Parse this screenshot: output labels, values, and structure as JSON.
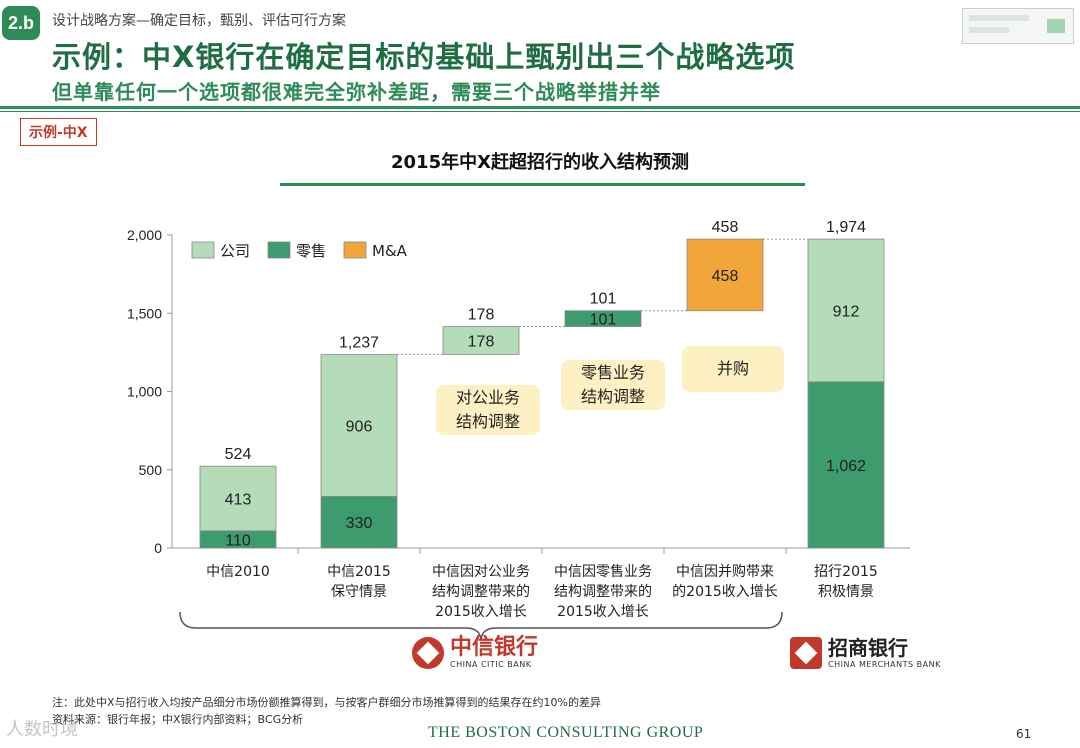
{
  "header": {
    "badge": "2.b",
    "breadcrumb": "设计战略方案—确定目标，甄别、评估可行方案",
    "title": "示例：中X银行在确定目标的基础上甄别出三个战略选项",
    "subtitle": "但单靠任何一个选项都很难完全弥补差距，需要三个战略举措并举"
  },
  "example_tag": "示例-中X",
  "callouts": {
    "corporate": [
      "对公业务",
      "结构调整"
    ],
    "retail": [
      "零售业务",
      "结构调整"
    ],
    "ma": [
      "并购"
    ]
  },
  "logos": {
    "citic_cn": "中信银行",
    "citic_en": "CHINA CITIC BANK",
    "cmb_cn": "招商银行",
    "cmb_en": "CHINA MERCHANTS BANK"
  },
  "footer": {
    "note": "注：此处中X与招行收入均按产品细分市场份额推算得到，与按客户群细分市场推算得到的结果存在约10%的差异",
    "source": "资料来源：银行年报；中X银行内部资料；BCG分析",
    "brand": "THE BOSTON CONSULTING GROUP",
    "page": "61",
    "watermark": "人数时境"
  },
  "chart_data": {
    "type": "bar",
    "subtype": "stacked-waterfall",
    "title": "2015年中X赶超招行的收入结构预测",
    "xlabel": "",
    "ylabel": "",
    "ylim": [
      0,
      2000
    ],
    "yticks": [
      "0",
      "500",
      "1,000",
      "1,500",
      "2,000"
    ],
    "ytick_values": [
      0,
      500,
      1000,
      1500,
      2000
    ],
    "grid": false,
    "legend_placement": "top-left",
    "colors": {
      "公司": "#b5dcb9",
      "零售": "#3e9b6d",
      "M&A": "#f0a63a"
    },
    "series_names": [
      "公司",
      "零售",
      "M&A"
    ],
    "categories": [
      [
        "中信2010"
      ],
      [
        "中信2015",
        "保守情景"
      ],
      [
        "中信因对公业务",
        "结构调整带来的",
        "2015收入增长"
      ],
      [
        "中信因零售业务",
        "结构调整带来的",
        "2015收入增长"
      ],
      [
        "中信因并购带来",
        "的2015收入增长"
      ],
      [
        "招行2015",
        "积极情景"
      ]
    ],
    "bars": [
      {
        "base": 0,
        "segments": [
          {
            "series": "零售",
            "value": 110,
            "label": "110"
          },
          {
            "series": "公司",
            "value": 413,
            "label": "413"
          }
        ],
        "total_label": "524"
      },
      {
        "base": 0,
        "segments": [
          {
            "series": "零售",
            "value": 330,
            "label": "330"
          },
          {
            "series": "公司",
            "value": 906,
            "label": "906"
          }
        ],
        "total_label": "1,237"
      },
      {
        "base": 1237,
        "segments": [
          {
            "series": "公司",
            "value": 178,
            "label": "178"
          }
        ],
        "total_label": "178"
      },
      {
        "base": 1415,
        "segments": [
          {
            "series": "零售",
            "value": 101,
            "label": "101"
          }
        ],
        "total_label": "101"
      },
      {
        "base": 1516,
        "segments": [
          {
            "series": "M&A",
            "value": 458,
            "label": "458"
          }
        ],
        "total_label": "458"
      },
      {
        "base": 0,
        "segments": [
          {
            "series": "零售",
            "value": 1062,
            "label": "1,062"
          },
          {
            "series": "公司",
            "value": 912,
            "label": "912"
          }
        ],
        "total_label": "1,974"
      }
    ]
  }
}
